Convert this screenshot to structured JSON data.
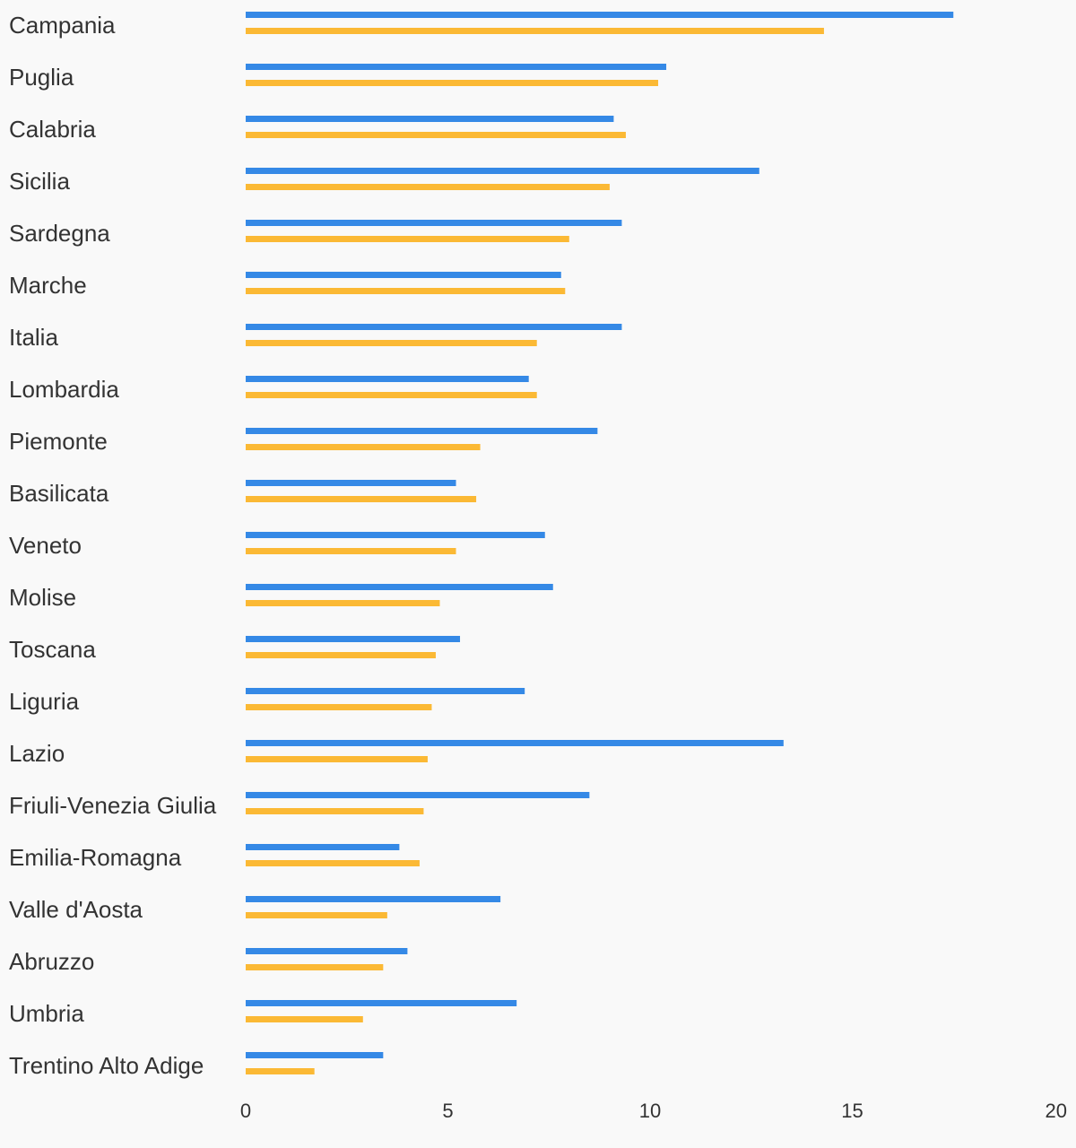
{
  "chart_data": {
    "type": "bar",
    "orientation": "horizontal",
    "title": "",
    "xlabel": "",
    "ylabel": "",
    "categories": [
      "Campania",
      "Puglia",
      "Calabria",
      "Sicilia",
      "Sardegna",
      "Marche",
      "Italia",
      "Lombardia",
      "Piemonte",
      "Basilicata",
      "Veneto",
      "Molise",
      "Toscana",
      "Liguria",
      "Lazio",
      "Friuli-Venezia Giulia",
      "Emilia-Romagna",
      "Valle d'Aosta",
      "Abruzzo",
      "Umbria",
      "Trentino Alto Adige"
    ],
    "series": [
      {
        "color": "#3589e6",
        "values": [
          17.5,
          10.4,
          9.1,
          12.7,
          9.3,
          7.8,
          9.3,
          7.0,
          8.7,
          5.2,
          7.4,
          7.6,
          5.3,
          6.9,
          13.3,
          8.5,
          3.8,
          6.3,
          4.0,
          6.7,
          3.4
        ]
      },
      {
        "color": "#fbb935",
        "values": [
          14.3,
          10.2,
          9.4,
          9.0,
          8.0,
          7.9,
          7.2,
          7.2,
          5.8,
          5.7,
          5.2,
          4.8,
          4.7,
          4.6,
          4.5,
          4.4,
          4.3,
          3.5,
          3.4,
          2.9,
          1.7
        ]
      }
    ],
    "xlim": [
      0,
      20
    ],
    "xticks": [
      "0",
      "5",
      "10",
      "15",
      "20"
    ],
    "grid": false,
    "legend": "none"
  }
}
